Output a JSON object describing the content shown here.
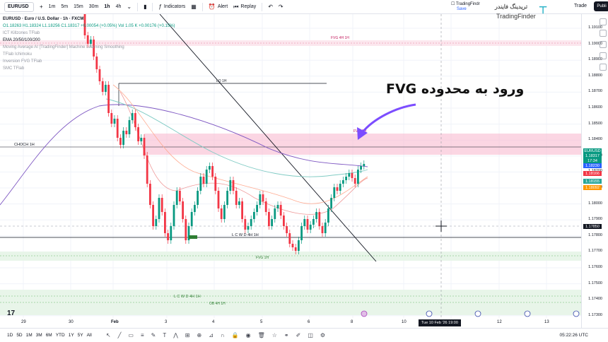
{
  "toolbar": {
    "symbol": "EURUSD",
    "intervals": [
      "1m",
      "5m",
      "15m",
      "30m",
      "1h",
      "4h"
    ],
    "indicators_label": "Indicators",
    "alert_label": "Alert",
    "replay_label": "Replay",
    "tf_chip_line1": "TradingFindr",
    "tf_chip_line2": "Save",
    "logo_fa": "تریدینگ فایندر",
    "logo_en": "TradingFinder",
    "trade_label": "Trade",
    "publish_label": "Publi"
  },
  "legend": {
    "title": "EURUSD · Euro / U.S. Dollar · 1h · FXCM",
    "ohlc": "O1.18263 H1.18324 L1.18256 C1.18317 +0.00054 (+0.05%) Vol 1.05 K +0.00176 (+0.15%)",
    "rows": [
      "ICT Killzones TFlab",
      "EMA 20/50/100/200",
      "Moving Average AI [TradingFinder] Machine Learning Smoothing",
      "TFlab Ichimoku",
      "Inversion FVG TFlab",
      "SMC TFlab"
    ]
  },
  "annotation": {
    "text": "ورود به محدوده FVG"
  },
  "chart_labels": {
    "fvg_4h_top": "FVG 4H 1H",
    "lq_1h": "LQ 1H",
    "choch_1h": "CHOCH 1H",
    "fvg_small": "FVG 1H",
    "lcwd_1h": "L C W D 4H 1H",
    "fvg_1h": "FVG 1H",
    "lcwd_4h": "L C W D 4H 1H",
    "ob_4h": "OB 4H 1H"
  },
  "price_axis": {
    "ticks": [
      "1.19100",
      "1.19000",
      "1.18900",
      "1.18800",
      "1.18700",
      "1.18600",
      "1.18500",
      "1.18400",
      "1.18300",
      "1.18200",
      "1.18100",
      "1.18000",
      "1.17900",
      "1.17800",
      "1.17700",
      "1.17600",
      "1.17500",
      "1.17400",
      "1.17300"
    ],
    "badges": [
      {
        "text": "EURUSD",
        "color": "#089981"
      },
      {
        "text": "1.18317",
        "color": "#089981"
      },
      {
        "text": "17:34",
        "color": "#089981"
      },
      {
        "text": "1.18230",
        "color": "#2962ff"
      },
      {
        "text": "1.18166",
        "color": "#f23645"
      },
      {
        "text": "1.18155",
        "color": "#26a69a"
      },
      {
        "text": "1.18092",
        "color": "#ff9800"
      },
      {
        "text": "1.17850",
        "color": "#131722"
      }
    ]
  },
  "time_axis": {
    "labels": [
      "29",
      "30",
      "Feb",
      "3",
      "4",
      "5",
      "6",
      "8",
      "10",
      "12",
      "13"
    ],
    "crosshair_time": "Tue 10 Feb '26  19:00"
  },
  "bottom_bar": {
    "ranges": [
      "1D",
      "5D",
      "1M",
      "3M",
      "6M",
      "YTD",
      "1Y",
      "5Y",
      "All"
    ],
    "clock": "05:22:26 UTC"
  },
  "colors": {
    "up": "#089981",
    "down": "#f23645",
    "fvg_zone": "#fce4ec",
    "green_zone": "#e8f5e9",
    "arrow": "#7c4dff"
  },
  "chart_data": {
    "type": "candlestick",
    "symbol": "EURUSD",
    "timeframe": "1h",
    "ylim": [
      1.1725,
      1.1915
    ],
    "levels": [
      {
        "name": "FVG 4H 1H",
        "low": 1.1899,
        "high": 1.1903
      },
      {
        "name": "LQ 1H",
        "price": 1.1875
      },
      {
        "name": "FVG 1H zone",
        "low": 1.1832,
        "high": 1.1844
      },
      {
        "name": "CHOCH 1H",
        "price": 1.1836
      },
      {
        "name": "L C W D 4H 1H",
        "price": 1.1778
      },
      {
        "name": "FVG 1H",
        "low": 1.1769,
        "high": 1.1775
      },
      {
        "name": "L C W D 4H 1H",
        "price": 1.1744
      },
      {
        "name": "OB 4H 1H",
        "low": 1.1738,
        "high": 1.1747
      }
    ],
    "last_price": 1.18317,
    "crosshair_price": 1.1785
  }
}
